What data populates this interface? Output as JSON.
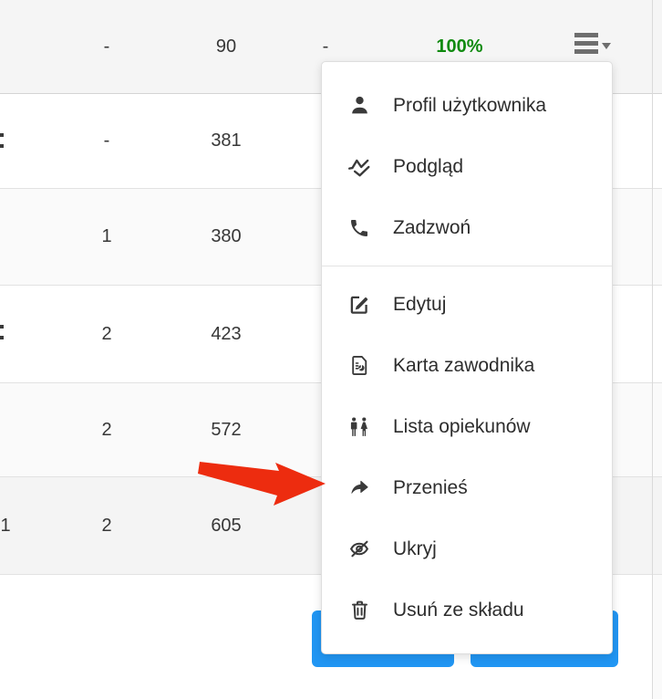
{
  "colors": {
    "button_blue": "#2196f3",
    "percent_green": "#0f8a0f",
    "arrow_red": "#ed2c0f",
    "icon_gray": "#3a3a3a"
  },
  "table": {
    "rows": [
      {
        "type": "summary",
        "cells": {
          "col_b": "-",
          "col_c": "90",
          "col_d": "-",
          "col_e": "100%"
        },
        "percent_highlight": true,
        "has_row_menu_button": true
      },
      {
        "type": "data",
        "cells": {
          "col_b": "-",
          "col_c": "381"
        },
        "left_edge_fragment": true
      },
      {
        "type": "data",
        "cells": {
          "col_b": "1",
          "col_c": "380"
        }
      },
      {
        "type": "data",
        "cells": {
          "col_b": "2",
          "col_c": "423"
        },
        "left_edge_fragment": true
      },
      {
        "type": "data",
        "cells": {
          "col_b": "2",
          "col_c": "572"
        }
      },
      {
        "type": "data",
        "cells": {
          "col_a": "1",
          "col_b": "2",
          "col_c": "605"
        }
      }
    ]
  },
  "row_menu": {
    "groups": [
      {
        "items": [
          {
            "id": "user-profile",
            "icon": "person-icon",
            "label": "Profil użytkownika"
          },
          {
            "id": "preview",
            "icon": "activity-chart-icon",
            "label": "Podgląd"
          },
          {
            "id": "call",
            "icon": "phone-icon",
            "label": "Zadzwoń"
          }
        ]
      },
      {
        "items": [
          {
            "id": "edit",
            "icon": "edit-icon",
            "label": "Edytuj"
          },
          {
            "id": "player-card",
            "icon": "document-chart-icon",
            "label": "Karta zawodnika"
          },
          {
            "id": "guardians-list",
            "icon": "people-icon",
            "label": "Lista opiekunów"
          },
          {
            "id": "move",
            "icon": "forward-arrow-icon",
            "label": "Przenieś"
          },
          {
            "id": "hide",
            "icon": "eye-slash-icon",
            "label": "Ukryj"
          },
          {
            "id": "remove-from-squad",
            "icon": "trash-icon",
            "label": "Usuń ze składu"
          }
        ]
      }
    ]
  },
  "action_buttons": [
    {
      "id": "left",
      "label": ""
    },
    {
      "id": "right",
      "label": ""
    }
  ],
  "annotation": {
    "type": "red-arrow",
    "points_to": "Przenieś"
  }
}
